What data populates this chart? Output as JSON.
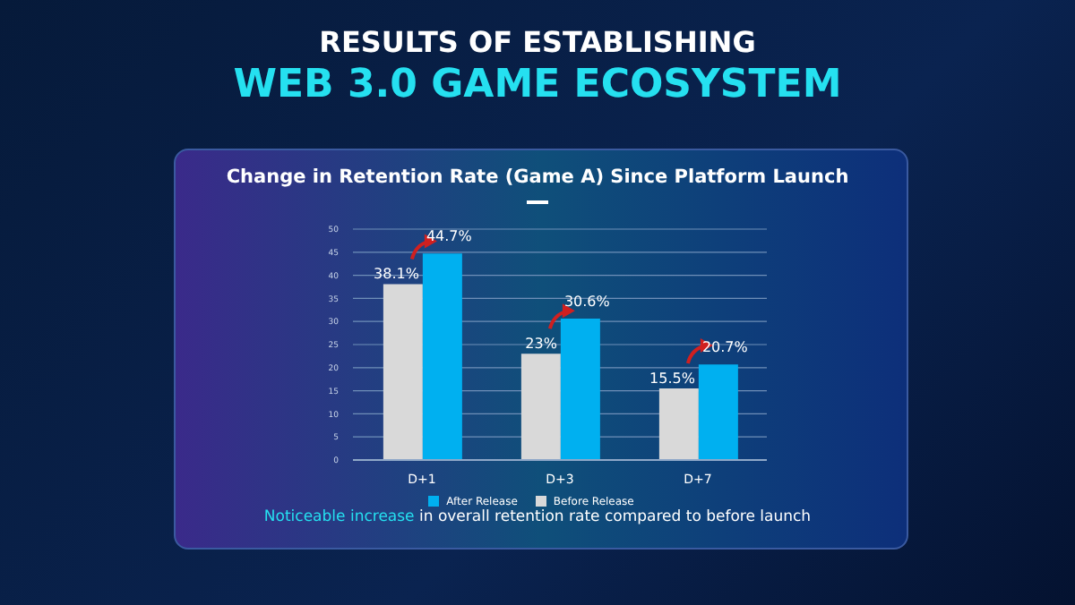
{
  "chart_data": {
    "type": "bar",
    "title": "Change in Retention Rate (Game A) Since Platform Launch",
    "annotations": [
      "RESULTS OF ESTABLISHING",
      "WEB 3.0 GAME ECOSYSTEM",
      "Noticeable increase in overall retention rate compared to before launch"
    ],
    "categories": [
      "D+1",
      "D+3",
      "D+7"
    ],
    "series": [
      {
        "name": "Before Release",
        "color": "#d9d9d9",
        "values": [
          38.1,
          23,
          15.5
        ],
        "value_labels": [
          "38.1%",
          "23%",
          "15.5%"
        ]
      },
      {
        "name": "After Release",
        "color": "#00b0f0",
        "values": [
          44.7,
          30.6,
          20.7
        ],
        "value_labels": [
          "44.7%",
          "30.6%",
          "20.7%"
        ]
      }
    ],
    "ylim": [
      0,
      50
    ],
    "yticks": [
      0,
      5,
      10,
      15,
      20,
      25,
      30,
      35,
      40,
      45,
      50
    ],
    "grid": "y",
    "legend": "bottom"
  }
}
